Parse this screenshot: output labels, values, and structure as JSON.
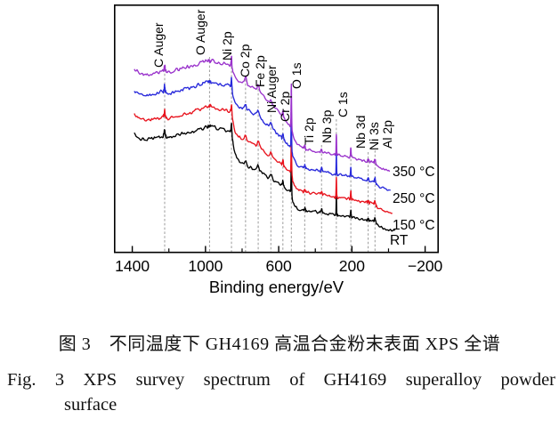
{
  "figure": {
    "caption_zh": "图 3　不同温度下 GH4169 高温合金粉末表面 XPS 全谱",
    "caption_en_line1": "Fig. 3   XPS survey spectrum of GH4169 superalloy powder",
    "caption_en_line2": "surface"
  },
  "chart_data": {
    "type": "line",
    "title": "",
    "xlabel": "Binding energy/eV",
    "ylabel": "",
    "x_axis_direction": "reversed",
    "x_tick_values": [
      1400,
      1000,
      600,
      200,
      -200
    ],
    "x_tick_labels": [
      "1400",
      "1000",
      "600",
      "200",
      "−200"
    ],
    "x_minor_tick_values": [
      1200,
      800,
      400,
      0
    ],
    "x_range": [
      1497,
      -273
    ],
    "grid": "off",
    "legend_position": "right-inline",
    "series": [
      {
        "name": "RT",
        "color": "#000000",
        "interp": 0.0,
        "end_ev": -40,
        "seed": 101
      },
      {
        "name": "150 °C",
        "color": "#e8131d",
        "interp": 0.3,
        "end_ev": -22,
        "seed": 202
      },
      {
        "name": "250 °C",
        "color": "#2829db",
        "interp": 0.68,
        "end_ev": -15,
        "seed": 303
      },
      {
        "name": "350 °C",
        "color": "#9a33cc",
        "interp": 1.0,
        "end_ev": -8,
        "seed": 404
      }
    ],
    "peaks": [
      {
        "label": "C Auger",
        "ev": 1223,
        "spike_amp": 6,
        "spike_sigma": 2.5
      },
      {
        "label": "O Auger",
        "ev": 978,
        "spike_amp": 0,
        "spike_sigma": 1
      },
      {
        "label": "Ni 2p",
        "ev": 858,
        "spike_amp": 11,
        "spike_sigma": 1.8
      },
      {
        "label": "Co 2p",
        "ev": 781,
        "spike_amp": 5,
        "spike_sigma": 4
      },
      {
        "label": "Fe 2p",
        "ev": 712,
        "spike_amp": 5,
        "spike_sigma": 4
      },
      {
        "label": "Ni Auger",
        "ev": 643,
        "spike_amp": 4,
        "spike_sigma": 5
      },
      {
        "label": "Cr 2p",
        "ev": 577,
        "spike_amp": 4.5,
        "spike_sigma": 2.5
      },
      {
        "label": "O 1s",
        "ev": 531,
        "spike_amp": 39,
        "spike_sigma": 1.5
      },
      {
        "label": "Ti 2p",
        "ev": 458,
        "spike_amp": 3,
        "spike_sigma": 2.5
      },
      {
        "label": "Nb 3p",
        "ev": 366,
        "spike_amp": 3,
        "spike_sigma": 3
      },
      {
        "label": "C 1s",
        "ev": 285,
        "spike_amp": 20,
        "spike_sigma": 1.3
      },
      {
        "label": "Nb 3d",
        "ev": 206,
        "spike_amp": 9,
        "spike_sigma": 1.7
      },
      {
        "label": "Ni 3s",
        "ev": 111,
        "spike_amp": 2,
        "spike_sigma": 2.5
      },
      {
        "label": "Al 2p",
        "ev": 74,
        "spike_amp": 4,
        "spike_sigma": 2.5
      }
    ],
    "profiles": {
      "black": [
        [
          -40,
          260
        ],
        [
          -25,
          259.5
        ],
        [
          -5,
          258.5
        ],
        [
          15,
          257.5
        ],
        [
          35,
          256
        ],
        [
          50,
          254.5
        ],
        [
          62,
          252.5
        ],
        [
          72,
          250
        ],
        [
          82,
          248.5
        ],
        [
          95,
          248
        ],
        [
          120,
          247.5
        ],
        [
          150,
          246.5
        ],
        [
          180,
          245.5
        ],
        [
          207,
          244
        ],
        [
          230,
          243.5
        ],
        [
          255,
          243
        ],
        [
          285,
          242
        ],
        [
          300,
          241.5
        ],
        [
          330,
          240.5
        ],
        [
          365,
          239
        ],
        [
          400,
          238
        ],
        [
          430,
          237.5
        ],
        [
          458,
          236.5
        ],
        [
          470,
          236
        ],
        [
          495,
          235
        ],
        [
          512,
          232
        ],
        [
          524,
          226
        ],
        [
          531,
          216
        ],
        [
          545,
          214.5
        ],
        [
          560,
          212
        ],
        [
          577,
          208.5
        ],
        [
          600,
          206.5
        ],
        [
          622,
          203.5
        ],
        [
          640,
          200
        ],
        [
          660,
          199
        ],
        [
          680,
          196
        ],
        [
          700,
          192.5
        ],
        [
          712,
          190
        ],
        [
          740,
          189
        ],
        [
          765,
          187
        ],
        [
          781,
          184.5
        ],
        [
          795,
          184
        ],
        [
          815,
          182
        ],
        [
          830,
          178
        ],
        [
          840,
          172
        ],
        [
          848,
          163
        ],
        [
          856,
          152
        ],
        [
          862,
          146.5
        ],
        [
          880,
          146
        ],
        [
          915,
          145
        ],
        [
          945,
          143.5
        ],
        [
          975,
          141.5
        ],
        [
          1020,
          144.5
        ],
        [
          1085,
          148.5
        ],
        [
          1150,
          152
        ],
        [
          1205,
          154.5
        ],
        [
          1228,
          152.5
        ],
        [
          1255,
          154.5
        ],
        [
          1300,
          157
        ],
        [
          1345,
          157
        ],
        [
          1370,
          154.5
        ],
        [
          1390,
          150
        ]
      ],
      "purple": [
        [
          -8,
          193
        ],
        [
          0,
          192.5
        ],
        [
          15,
          191.5
        ],
        [
          35,
          190
        ],
        [
          50,
          188.5
        ],
        [
          62,
          186.5
        ],
        [
          72,
          184
        ],
        [
          82,
          182.5
        ],
        [
          95,
          182
        ],
        [
          120,
          181
        ],
        [
          150,
          179.5
        ],
        [
          180,
          178
        ],
        [
          207,
          176.5
        ],
        [
          230,
          176
        ],
        [
          255,
          175
        ],
        [
          285,
          174
        ],
        [
          300,
          173.5
        ],
        [
          330,
          172.5
        ],
        [
          365,
          171
        ],
        [
          400,
          170
        ],
        [
          430,
          169
        ],
        [
          458,
          167
        ],
        [
          470,
          166
        ],
        [
          495,
          163
        ],
        [
          512,
          158
        ],
        [
          524,
          150
        ],
        [
          531,
          142
        ],
        [
          545,
          140
        ],
        [
          560,
          136
        ],
        [
          577,
          131
        ],
        [
          600,
          126
        ],
        [
          620,
          121
        ],
        [
          643,
          116
        ],
        [
          670,
          111
        ],
        [
          695,
          105
        ],
        [
          712,
          100
        ],
        [
          740,
          98
        ],
        [
          765,
          95
        ],
        [
          781,
          92
        ],
        [
          800,
          91
        ],
        [
          820,
          90
        ],
        [
          838,
          88
        ],
        [
          848,
          82
        ],
        [
          856,
          76
        ],
        [
          862,
          73
        ],
        [
          880,
          72.5
        ],
        [
          915,
          71.5
        ],
        [
          945,
          70
        ],
        [
          975,
          68
        ],
        [
          1020,
          70.5
        ],
        [
          1085,
          75
        ],
        [
          1150,
          78.5
        ],
        [
          1205,
          81
        ],
        [
          1228,
          79
        ],
        [
          1255,
          81
        ],
        [
          1300,
          83.5
        ],
        [
          1345,
          84
        ],
        [
          1370,
          81
        ],
        [
          1390,
          78
        ]
      ]
    }
  }
}
